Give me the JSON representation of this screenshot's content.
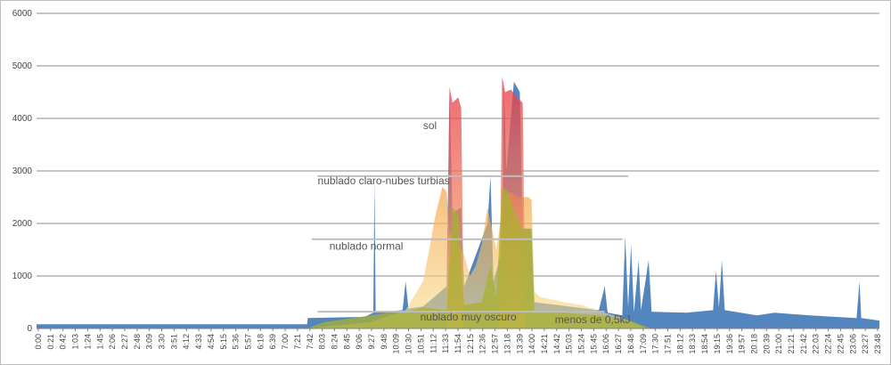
{
  "chart_data": {
    "type": "area",
    "title": "",
    "xlabel": "",
    "ylabel": "",
    "ylim": [
      0,
      6000
    ],
    "yticks": [
      0,
      1000,
      2000,
      3000,
      4000,
      5000,
      6000
    ],
    "grid": true,
    "xlim": [
      "0:00",
      "23:59"
    ],
    "x_tick_labels": [
      "0:00",
      "0:21",
      "0:42",
      "1:03",
      "1:24",
      "1:45",
      "2:06",
      "2:27",
      "2:48",
      "3:09",
      "3:30",
      "3:51",
      "4:12",
      "4:33",
      "4:54",
      "5:15",
      "5:36",
      "5:57",
      "6:18",
      "6:39",
      "7:00",
      "7:21",
      "7:42",
      "8:03",
      "8:24",
      "8:45",
      "9:06",
      "9:27",
      "9:48",
      "10:09",
      "10:30",
      "10:51",
      "11:12",
      "11:33",
      "11:54",
      "12:15",
      "12:36",
      "12:57",
      "13:18",
      "13:39",
      "14:00",
      "14:21",
      "14:42",
      "15:03",
      "15:24",
      "15:45",
      "16:06",
      "16:27",
      "16:48",
      "17:09",
      "17:30",
      "17:51",
      "18:12",
      "18:33",
      "18:54",
      "19:15",
      "19:36",
      "19:57",
      "20:18",
      "20:39",
      "21:00",
      "21:21",
      "21:42",
      "22:03",
      "22:24",
      "22:45",
      "23:06",
      "23:27",
      "23:48"
    ],
    "series": [
      {
        "color": "#4a7ebb",
        "points": [
          [
            "0:00",
            80
          ],
          [
            "7:42",
            80
          ],
          [
            "7:43",
            200
          ],
          [
            "9:20",
            220
          ],
          [
            "9:35",
            300
          ],
          [
            "9:37",
            2800
          ],
          [
            "9:39",
            300
          ],
          [
            "10:25",
            350
          ],
          [
            "10:30",
            900
          ],
          [
            "10:35",
            380
          ],
          [
            "11:00",
            420
          ],
          [
            "11:40",
            800
          ],
          [
            "11:45",
            4500
          ],
          [
            "11:50",
            2200
          ],
          [
            "12:05",
            2300
          ],
          [
            "12:10",
            800
          ],
          [
            "12:50",
            2000
          ],
          [
            "12:55",
            2900
          ],
          [
            "13:00",
            900
          ],
          [
            "13:15",
            1500
          ],
          [
            "13:18",
            4600
          ],
          [
            "13:22",
            3000
          ],
          [
            "13:35",
            4700
          ],
          [
            "13:45",
            4500
          ],
          [
            "13:50",
            1900
          ],
          [
            "14:05",
            1900
          ],
          [
            "14:10",
            500
          ],
          [
            "16:00",
            350
          ],
          [
            "16:10",
            800
          ],
          [
            "16:15",
            300
          ],
          [
            "16:40",
            250
          ],
          [
            "16:45",
            1750
          ],
          [
            "16:50",
            400
          ],
          [
            "16:55",
            1600
          ],
          [
            "17:00",
            300
          ],
          [
            "17:08",
            1300
          ],
          [
            "17:12",
            350
          ],
          [
            "17:25",
            1300
          ],
          [
            "17:30",
            320
          ],
          [
            "18:30",
            300
          ],
          [
            "19:15",
            350
          ],
          [
            "19:20",
            1100
          ],
          [
            "19:25",
            400
          ],
          [
            "19:30",
            1300
          ],
          [
            "19:35",
            350
          ],
          [
            "20:30",
            250
          ],
          [
            "21:00",
            300
          ],
          [
            "22:00",
            250
          ],
          [
            "22:45",
            220
          ],
          [
            "23:20",
            200
          ],
          [
            "23:25",
            900
          ],
          [
            "23:28",
            200
          ],
          [
            "23:59",
            150
          ]
        ]
      },
      {
        "color": "#f0a030",
        "points": [
          [
            "7:42",
            0
          ],
          [
            "9:30",
            120
          ],
          [
            "10:30",
            350
          ],
          [
            "11:00",
            900
          ],
          [
            "11:12",
            1600
          ],
          [
            "11:20",
            2100
          ],
          [
            "11:33",
            2700
          ],
          [
            "11:40",
            2600
          ],
          [
            "11:45",
            1800
          ],
          [
            "11:54",
            1700
          ],
          [
            "12:10",
            1400
          ],
          [
            "12:20",
            1000
          ],
          [
            "12:30",
            1200
          ],
          [
            "12:40",
            1600
          ],
          [
            "12:50",
            2300
          ],
          [
            "13:05",
            1500
          ],
          [
            "13:18",
            2500
          ],
          [
            "13:30",
            2600
          ],
          [
            "13:45",
            2500
          ],
          [
            "14:00",
            2500
          ],
          [
            "14:05",
            2450
          ],
          [
            "14:10",
            700
          ],
          [
            "14:20",
            600
          ],
          [
            "15:00",
            500
          ],
          [
            "15:30",
            450
          ],
          [
            "16:10",
            300
          ],
          [
            "16:40",
            200
          ],
          [
            "17:20",
            0
          ]
        ]
      },
      {
        "color": "#e04848",
        "points": [
          [
            "11:40",
            0
          ],
          [
            "11:45",
            4600
          ],
          [
            "11:50",
            4300
          ],
          [
            "12:00",
            4400
          ],
          [
            "12:05",
            4200
          ],
          [
            "12:10",
            0
          ],
          [
            "13:10",
            0
          ],
          [
            "13:15",
            4800
          ],
          [
            "13:20",
            4500
          ],
          [
            "13:30",
            4550
          ],
          [
            "13:40",
            4400
          ],
          [
            "13:50",
            4300
          ],
          [
            "13:55",
            0
          ]
        ]
      },
      {
        "color": "#aab030",
        "points": [
          [
            "7:42",
            0
          ],
          [
            "8:10",
            120
          ],
          [
            "9:00",
            200
          ],
          [
            "10:00",
            300
          ],
          [
            "10:30",
            300
          ],
          [
            "11:00",
            400
          ],
          [
            "11:40",
            350
          ],
          [
            "11:50",
            2300
          ],
          [
            "12:00",
            2200
          ],
          [
            "12:10",
            450
          ],
          [
            "12:40",
            500
          ],
          [
            "12:55",
            1200
          ],
          [
            "13:05",
            600
          ],
          [
            "13:15",
            2700
          ],
          [
            "13:25",
            2600
          ],
          [
            "13:40",
            2100
          ],
          [
            "13:50",
            1900
          ],
          [
            "14:05",
            1900
          ],
          [
            "14:10",
            300
          ],
          [
            "15:00",
            300
          ],
          [
            "16:00",
            250
          ],
          [
            "16:40",
            200
          ],
          [
            "17:30",
            0
          ]
        ]
      }
    ],
    "annotations": [
      {
        "text": "sol",
        "x": "11:00",
        "y": 3800
      },
      {
        "text": "nublado claro-nubes turbias",
        "x": "8:00",
        "y": 2750,
        "line": [
          "8:00",
          "16:50",
          2900
        ]
      },
      {
        "text": "nublado normal",
        "x": "8:20",
        "y": 1500,
        "line": [
          "7:50",
          "16:40",
          1700
        ]
      },
      {
        "text": "nublado muy oscuro",
        "x": "10:55",
        "y": 150,
        "line": [
          "8:00",
          "16:10",
          320
        ]
      },
      {
        "text": "menos de 0,5kJ",
        "x": "14:45",
        "y": 100
      }
    ]
  }
}
